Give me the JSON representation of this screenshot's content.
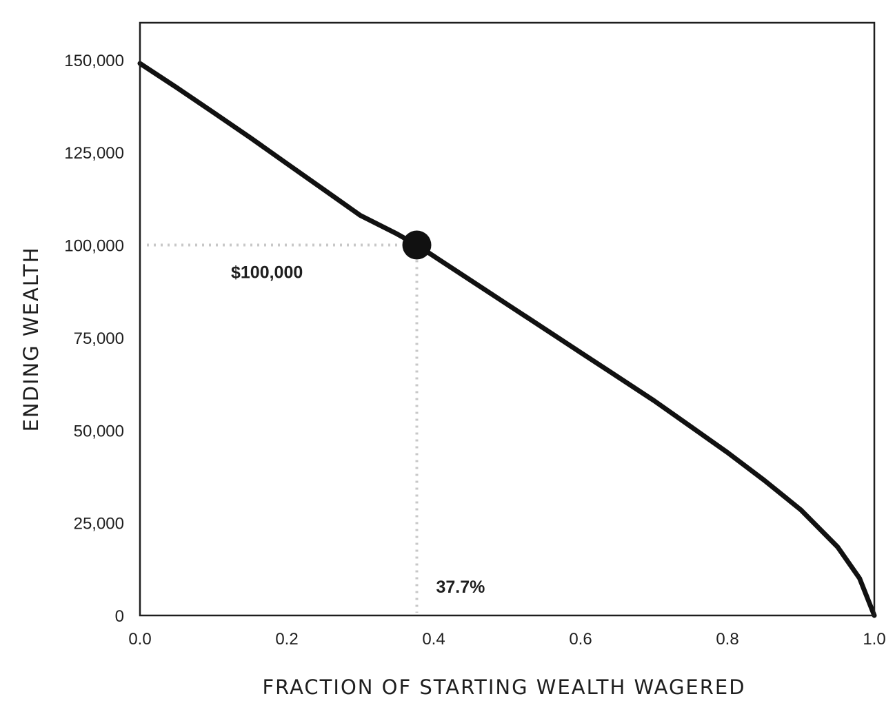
{
  "chart_data": {
    "type": "line",
    "title": "",
    "xlabel": "FRACTION OF STARTING WEALTH WAGERED",
    "ylabel": "ENDING WEALTH",
    "xlim": [
      0,
      1
    ],
    "ylim": [
      0,
      160000
    ],
    "x_ticks": [
      0,
      0.2,
      0.4,
      0.6,
      0.8,
      1.0
    ],
    "x_tick_labels": [
      "0.0",
      "0.2",
      "0.4",
      "0.6",
      "0.8",
      "1.0"
    ],
    "y_ticks": [
      0,
      25000,
      50000,
      75000,
      100000,
      125000,
      150000
    ],
    "y_tick_labels": [
      "0",
      "25,000",
      "50,000",
      "75,000",
      "100,000",
      "125,000",
      "150,000"
    ],
    "grid": false,
    "legend": "none",
    "colors": {
      "line": "#111111",
      "marker": "#111111",
      "guide": "#c8c8c8",
      "frame": "#1e1e1e"
    },
    "series": [
      {
        "x": [
          0,
          0.05,
          0.1,
          0.15,
          0.2,
          0.25,
          0.3,
          0.35,
          0.377,
          0.4,
          0.45,
          0.5,
          0.55,
          0.6,
          0.65,
          0.7,
          0.75,
          0.8,
          0.85,
          0.9,
          0.95,
          0.98,
          1.0
        ],
        "y": [
          149000,
          142500,
          135800,
          129000,
          122000,
          115000,
          108000,
          103000,
          100000,
          97000,
          90500,
          84000,
          77500,
          71000,
          64500,
          58000,
          51000,
          44000,
          36500,
          28500,
          18500,
          10000,
          0
        ]
      }
    ],
    "highlight_point": {
      "x": 0.377,
      "y": 100000
    },
    "annotations": {
      "y_value_label": "$100,000",
      "x_value_label": "37.7%"
    }
  }
}
